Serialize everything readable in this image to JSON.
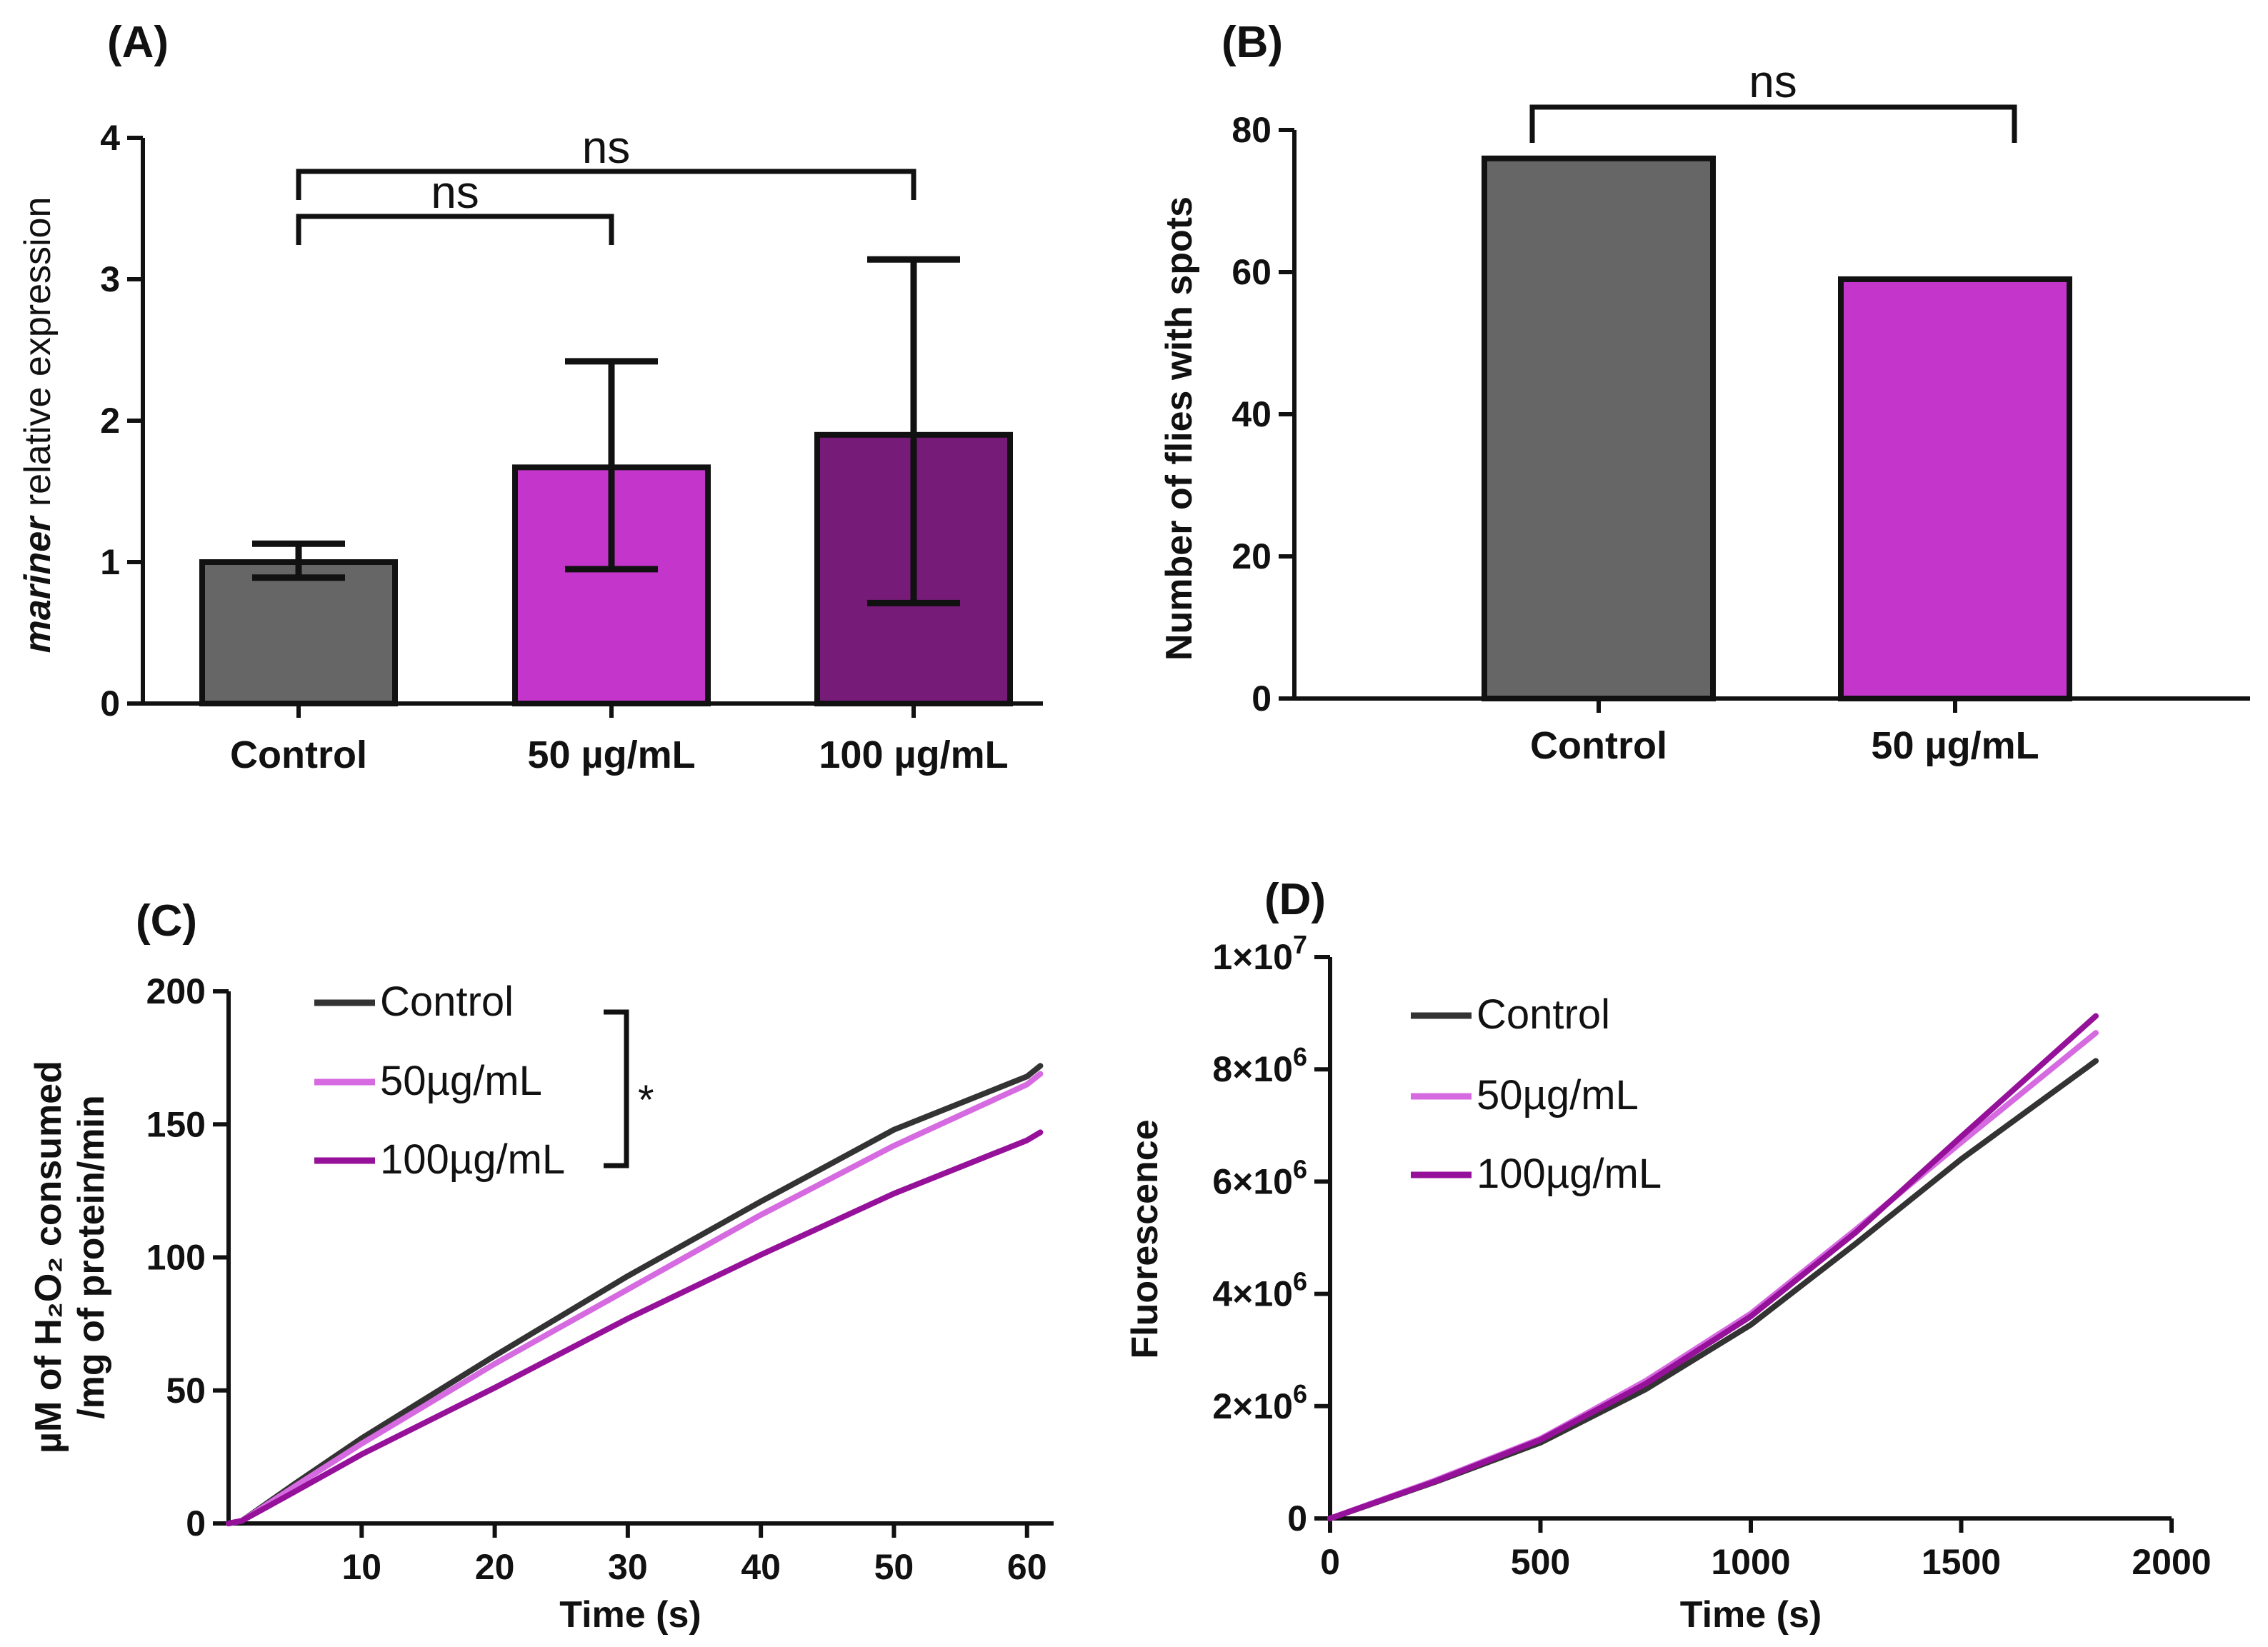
{
  "colors": {
    "control_bar": "#666666",
    "dose50_bar": "#c435cc",
    "dose100_bar": "#761b78",
    "control_line": "#333333",
    "dose50_line": "#d66ae0",
    "dose100_line": "#96119a"
  },
  "chart_data": [
    {
      "panel": "(A)",
      "type": "bar",
      "categories": [
        "Control",
        "50 µg/mL",
        "100 µg/mL"
      ],
      "values": [
        1.0,
        1.67,
        1.9
      ],
      "err_low": [
        0.89,
        0.95,
        0.71
      ],
      "err_high": [
        1.13,
        2.42,
        3.14
      ],
      "ylabel_italic": "mariner",
      "ylabel_rest": " relative expression",
      "ylim": [
        0,
        4
      ],
      "yticks": [
        "0",
        "1",
        "2",
        "3",
        "4"
      ],
      "significance": [
        {
          "from": "Control",
          "to": "50 µg/mL",
          "label": "ns"
        },
        {
          "from": "Control",
          "to": "100 µg/mL",
          "label": "ns"
        }
      ]
    },
    {
      "panel": "(B)",
      "type": "bar",
      "categories": [
        "Control",
        "50 µg/mL"
      ],
      "values": [
        76,
        59
      ],
      "ylabel": "Number of flies with spots",
      "ylim": [
        0,
        80
      ],
      "yticks": [
        "0",
        "20",
        "40",
        "60",
        "80"
      ],
      "significance": [
        {
          "from": "Control",
          "to": "50 µg/mL",
          "label": "ns"
        }
      ]
    },
    {
      "panel": "(C)",
      "type": "line",
      "ylabel_line1": "µM of H₂O₂ consumed",
      "ylabel_line2": "/mg of protein/min",
      "xlabel": "Time (s)",
      "xlim": [
        0,
        62
      ],
      "ylim": [
        0,
        200
      ],
      "xticks": [
        "10",
        "20",
        "30",
        "40",
        "50",
        "60"
      ],
      "yticks": [
        "0",
        "50",
        "100",
        "150",
        "200"
      ],
      "legend": [
        "Control",
        "50µg/mL",
        "100µg/mL"
      ],
      "significance_label": "*",
      "series": [
        {
          "name": "Control",
          "x": [
            0,
            1,
            5,
            10,
            20,
            30,
            40,
            50,
            60,
            61
          ],
          "y": [
            0,
            1,
            15,
            32,
            63,
            93,
            121,
            148,
            168,
            172
          ]
        },
        {
          "name": "50µg/mL",
          "x": [
            0,
            1,
            5,
            10,
            20,
            30,
            40,
            50,
            60,
            61
          ],
          "y": [
            0,
            1,
            14,
            30,
            60,
            88,
            116,
            142,
            165,
            169
          ]
        },
        {
          "name": "100µg/mL",
          "x": [
            0,
            1,
            5,
            10,
            20,
            30,
            40,
            50,
            60,
            61
          ],
          "y": [
            0,
            1,
            12,
            26,
            51,
            77,
            101,
            124,
            144,
            147
          ]
        }
      ]
    },
    {
      "panel": "(D)",
      "type": "line",
      "ylabel": "Fluorescence",
      "xlabel": "Time (s)",
      "xlim": [
        0,
        2000
      ],
      "ylim": [
        0,
        10000000
      ],
      "xticks": [
        "0",
        "500",
        "1000",
        "1500",
        "2000"
      ],
      "yticks": [
        {
          "base": "0",
          "exp": ""
        },
        {
          "base": "2×10",
          "exp": "6"
        },
        {
          "base": "4×10",
          "exp": "6"
        },
        {
          "base": "6×10",
          "exp": "6"
        },
        {
          "base": "8×10",
          "exp": "6"
        },
        {
          "base": "1×10",
          "exp": "7"
        }
      ],
      "legend": [
        "Control",
        "50µg/mL",
        "100µg/mL"
      ],
      "series": [
        {
          "name": "Control",
          "x": [
            0,
            250,
            500,
            750,
            1000,
            1250,
            1500,
            1820
          ],
          "y": [
            0,
            650000,
            1350000,
            2300000,
            3450000,
            4900000,
            6400000,
            8150000
          ]
        },
        {
          "name": "50µg/mL",
          "x": [
            0,
            250,
            500,
            750,
            1000,
            1250,
            1500,
            1820
          ],
          "y": [
            0,
            680000,
            1420000,
            2450000,
            3650000,
            5150000,
            6700000,
            8650000
          ]
        },
        {
          "name": "100µg/mL",
          "x": [
            0,
            250,
            500,
            750,
            1000,
            1250,
            1500,
            1820
          ],
          "y": [
            0,
            660000,
            1400000,
            2400000,
            3600000,
            5100000,
            6800000,
            8950000
          ]
        }
      ]
    }
  ]
}
